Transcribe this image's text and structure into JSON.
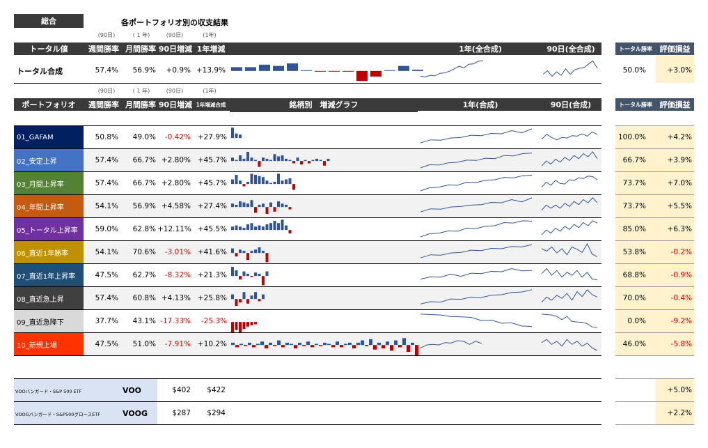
{
  "title_box": "総合",
  "title": "各ポートフォリオ別の収支結果",
  "notes_top": [
    "(90日)",
    "( 1 年)",
    "(90日)",
    "(1年)"
  ],
  "total_header": {
    "label": "トータル値",
    "cols": [
      "週間勝率",
      "月間勝率",
      "90日増減",
      "1年増減"
    ],
    "chart_1y": "1年(全合成)",
    "chart_90d": "90日(全合成)",
    "right_cols": [
      "トータル勝率",
      "評価損益"
    ]
  },
  "total_row": {
    "label": "トータル合成",
    "weekly": "57.4%",
    "monthly": "56.9%",
    "d90": "+0.9%",
    "y1": "+13.9%",
    "bars": [
      0.3,
      0.3,
      0.5,
      0.4,
      0.6,
      0,
      -0.05,
      -0.05,
      -0.05,
      -0.8,
      -0.45,
      0,
      0.4,
      0.1
    ],
    "spark_1y": [
      0.2,
      0.1,
      0.25,
      0.15,
      0.35,
      0.3,
      0.45,
      0.5,
      0.7,
      0.55,
      0.8,
      0.75,
      0.95,
      0.9
    ],
    "spark_90d": [
      0.3,
      0.4,
      0.2,
      0.35,
      0.25,
      0.5,
      0.3,
      0.45,
      0.6,
      0.55,
      0.8,
      0.9,
      0.6
    ],
    "total_win": "50.0%",
    "pnl": "+3.0%"
  },
  "notes_mid": [
    "(90日)",
    "( 1 年)",
    "(90日)",
    "(1年)"
  ],
  "pf_header": {
    "label": "ポートフォリオ",
    "cols": [
      "週間勝率",
      "月間勝率",
      "90日増減",
      "1年増減合成"
    ],
    "bars_title": "銘柄別　増減グラフ",
    "chart_1y": "1年(合成)",
    "chart_90d": "90日(合成)",
    "right_cols": [
      "トータル勝率",
      "評価損益"
    ]
  },
  "portfolios": [
    {
      "name": "01_GAFAM",
      "color": "#002060",
      "weekly": "50.8%",
      "monthly": "49.0%",
      "d90": "-0.42%",
      "y1": "+27.9%",
      "win": "100.0%",
      "pnl": "+4.2%",
      "bars": [
        0.9,
        0.4,
        0.3
      ],
      "s1": [
        0.2,
        0.3,
        0.35,
        0.4,
        0.5,
        0.55,
        0.6,
        0.65,
        0.7,
        0.8,
        0.75,
        0.9
      ],
      "s9": [
        0.4,
        0.6,
        0.5,
        0.3,
        0.5,
        0.4,
        0.6,
        0.5,
        0.7,
        0.5,
        0.8,
        0.6
      ]
    },
    {
      "name": "02_安定上昇",
      "color": "#4472c4",
      "weekly": "57.4%",
      "monthly": "66.7%",
      "d90": "+2.80%",
      "y1": "+45.7%",
      "win": "66.7%",
      "pnl": "+3.9%",
      "bars": [
        0.3,
        0.1,
        0.5,
        0.2,
        0.8,
        0.3,
        0.1,
        -0.5,
        0.3,
        0.2,
        0.1,
        0.6,
        0.4,
        0.5,
        0.2,
        0.1,
        -0.2,
        0.3,
        -0.3,
        0.1,
        -0.2,
        0.1,
        0.2,
        0.1,
        -0.4,
        0.2
      ],
      "s1": [
        0.1,
        0.2,
        0.25,
        0.3,
        0.4,
        0.45,
        0.5,
        0.55,
        0.6,
        0.7,
        0.75,
        0.8,
        0.9
      ],
      "s9": [
        0.2,
        0.4,
        0.3,
        0.5,
        0.4,
        0.6,
        0.5,
        0.7,
        0.6,
        0.8,
        0.7,
        0.9,
        0.6
      ]
    },
    {
      "name": "03_月間上昇率",
      "color": "#548235",
      "weekly": "57.4%",
      "monthly": "66.7%",
      "d90": "+2.80%",
      "y1": "+45.7%",
      "win": "73.7%",
      "pnl": "+7.0%",
      "bars": [
        0.4,
        0.8,
        0.3,
        -0.2,
        0.2,
        0.9,
        0.8,
        0.7,
        0.6,
        0.3,
        0.1,
        0.2,
        0.9,
        0.3,
        0.4,
        0.5,
        -0.5
      ],
      "s1": [
        0.1,
        0.2,
        0.3,
        0.35,
        0.4,
        0.5,
        0.55,
        0.6,
        0.7,
        0.75,
        0.8,
        0.85,
        0.95
      ],
      "s9": [
        0.3,
        0.5,
        0.4,
        0.6,
        0.5,
        0.4,
        0.7,
        0.6,
        0.8,
        0.7,
        0.9,
        0.8,
        0.7
      ]
    },
    {
      "name": "04_年間上昇率",
      "color": "#c55a11",
      "weekly": "54.1%",
      "monthly": "56.9%",
      "d90": "+4.58%",
      "y1": "+27.4%",
      "win": "73.7%",
      "pnl": "+5.5%",
      "bars": [
        0.3,
        0.2,
        0.5,
        0.4,
        0.3,
        0.6,
        -0.5,
        0.2,
        0.3,
        -0.6,
        0.4,
        -0.4,
        0.5,
        0.3,
        0.2,
        -0.2
      ],
      "s1": [
        0.2,
        0.3,
        0.35,
        0.4,
        0.5,
        0.5,
        0.6,
        0.65,
        0.7,
        0.8,
        0.75,
        0.9
      ],
      "s9": [
        0.3,
        0.5,
        0.4,
        0.5,
        0.4,
        0.6,
        0.5,
        0.7,
        0.6,
        0.8,
        0.7,
        0.9,
        0.7
      ]
    },
    {
      "name": "05_トータル上昇率",
      "color": "#7030a0",
      "weekly": "59.0%",
      "monthly": "62.8%",
      "d90": "+12.11%",
      "y1": "+45.5%",
      "win": "85.0%",
      "pnl": "+6.3%",
      "bars": [
        0.3,
        0.4,
        0.3,
        0.2,
        0.5,
        0.6,
        0.3,
        0.4,
        0.3,
        0.5,
        0.6,
        0.8,
        0.6,
        0.9,
        0.4,
        -0.3
      ],
      "s1": [
        0.1,
        0.2,
        0.3,
        0.35,
        0.4,
        0.5,
        0.55,
        0.6,
        0.7,
        0.8,
        0.85,
        0.9,
        0.95
      ],
      "s9": [
        0.2,
        0.4,
        0.3,
        0.5,
        0.4,
        0.6,
        0.5,
        0.7,
        0.6,
        0.8,
        0.7,
        0.9,
        0.85
      ]
    },
    {
      "name": "06_直近1年勝率",
      "color": "#bf9000",
      "weekly": "54.1%",
      "monthly": "70.6%",
      "d90": "-3.01%",
      "y1": "+41.6%",
      "win": "53.8%",
      "pnl": "-0.2%",
      "bars": [
        0.4,
        -0.3,
        0.3,
        0.2,
        -0.6,
        0.2,
        0.3,
        0.5,
        0.2,
        -0.8
      ],
      "s1": [
        0.2,
        0.3,
        0.35,
        0.4,
        0.5,
        0.55,
        0.6,
        0.65,
        0.7,
        0.75,
        0.8,
        0.85
      ],
      "s9": [
        0.7,
        0.5,
        0.8,
        0.4,
        0.7,
        0.3,
        0.8,
        0.6,
        0.5,
        0.9,
        0.4,
        0.2
      ]
    },
    {
      "name": "07_直近1年上昇率",
      "color": "#1f4e79",
      "weekly": "47.5%",
      "monthly": "62.7%",
      "d90": "-8.32%",
      "y1": "+21.3%",
      "win": "68.8%",
      "pnl": "-0.9%",
      "bars": [
        0.8,
        0.5,
        -0.3,
        0.4,
        0.2,
        -0.1,
        0.3,
        0.2,
        -0.8,
        0.4
      ],
      "s1": [
        0.3,
        0.35,
        0.4,
        0.5,
        0.45,
        0.55,
        0.6,
        0.65,
        0.7,
        0.8,
        0.75,
        0.7
      ],
      "s9": [
        0.6,
        0.8,
        0.5,
        0.7,
        0.4,
        0.6,
        0.5,
        0.7,
        0.4,
        0.6,
        0.3,
        0.2
      ]
    },
    {
      "name": "08_直近急上昇",
      "color": "#404040",
      "weekly": "57.4%",
      "monthly": "60.8%",
      "d90": "+4.13%",
      "y1": "+25.8%",
      "win": "70.0%",
      "pnl": "-0.4%",
      "bars": [
        0.4,
        -0.6,
        -0.3,
        0.6,
        -0.4,
        0.3,
        0.6,
        -0.2,
        0.4
      ],
      "s1": [
        0.2,
        0.25,
        0.3,
        0.4,
        0.45,
        0.5,
        0.55,
        0.6,
        0.7,
        0.75,
        0.85,
        0.9
      ],
      "s9": [
        0.3,
        0.5,
        0.4,
        0.6,
        0.5,
        0.7,
        0.4,
        0.8,
        0.6,
        0.9,
        0.7,
        0.5
      ]
    },
    {
      "name": "09_直近急降下",
      "color": "#d9d9d9",
      "weekly": "37.7%",
      "monthly": "43.1%",
      "d90": "-17.33%",
      "y1": "-25.3%",
      "win": "0.0%",
      "pnl": "-9.2%",
      "bars": [
        -1.0,
        -0.7,
        -0.9,
        -0.6,
        -0.4,
        -0.3,
        -0.2
      ],
      "s1": [
        0.9,
        0.8,
        0.85,
        0.7,
        0.75,
        0.65,
        0.55,
        0.5,
        0.4,
        0.35,
        0.25,
        0.15
      ],
      "s9": [
        0.9,
        0.8,
        0.85,
        0.7,
        0.6,
        0.7,
        0.5,
        0.4,
        0.45,
        0.3,
        0.2,
        0.1
      ]
    },
    {
      "name": "10_新規上場",
      "color": "#ff3300",
      "weekly": "47.5%",
      "monthly": "51.0%",
      "d90": "-7.91%",
      "y1": "+10.2%",
      "win": "46.0%",
      "pnl": "-5.8%",
      "bars": [
        0.2,
        -0.2,
        0.1,
        -0.1,
        0.2,
        -0.2,
        0.1,
        0.3,
        -0.3,
        0.2,
        -0.1,
        0.4,
        -0.2,
        0.2,
        0.1,
        -0.3,
        0.2,
        -0.1,
        0.3,
        -0.2,
        0.1,
        -0.1,
        0.2,
        0.1,
        -0.2,
        0.3,
        -0.2,
        0.1,
        0.2,
        -0.3,
        0.2,
        0.4,
        -0.1,
        0.5,
        -0.4,
        0.2,
        -0.3,
        0.3,
        -0.5,
        0.4,
        -0.2,
        0.6,
        -0.6,
        0.2,
        -0.9
      ],
      "s1": [
        0.3,
        0.4,
        0.5,
        0.4,
        0.6,
        0.5,
        0.7,
        0.6,
        0.5,
        0.6,
        0.55
      ],
      "s9": [
        0.6,
        0.7,
        0.5,
        0.6,
        0.4,
        0.7,
        0.5,
        0.6,
        0.4,
        0.5,
        0.3,
        0.1
      ]
    }
  ],
  "etfs": [
    {
      "desc": "VOOバンガード・S&P 500 ETF",
      "ticker": "VOO",
      "p1": "$402",
      "p2": "$422",
      "pnl": "+5.0%"
    },
    {
      "desc": "VOOGバンガード・S&P500グロースETF",
      "ticker": "VOOG",
      "p1": "$287",
      "p2": "$294",
      "pnl": "+2.2%"
    }
  ],
  "colors": {
    "bar_pos": "#2f5597",
    "bar_neg": "#c00000",
    "spark": "#2f5597",
    "dark_header": "#3a3a3a",
    "header_right": "#44546a"
  }
}
